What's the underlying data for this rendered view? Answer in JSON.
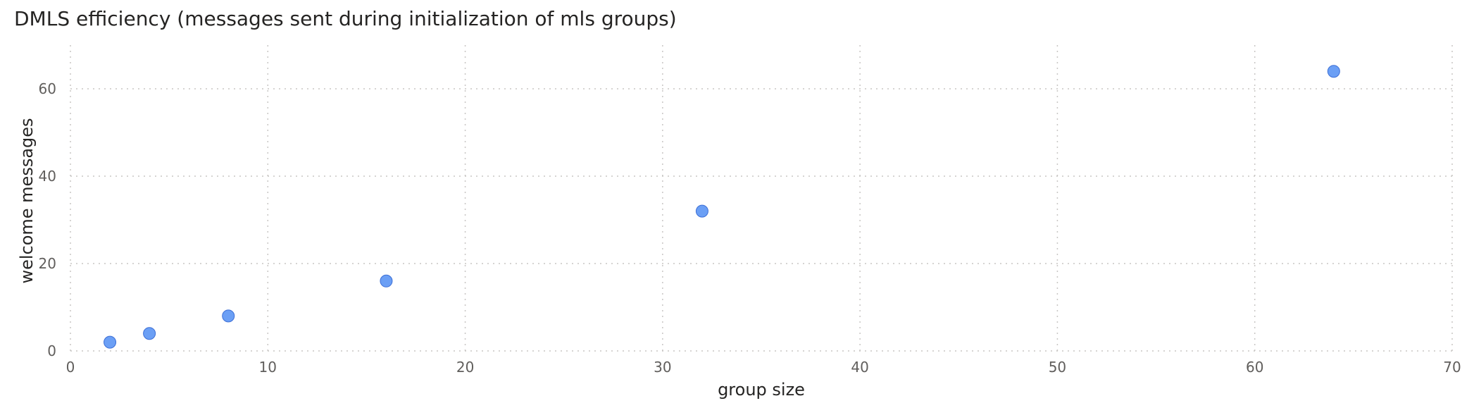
{
  "chart_data": {
    "type": "scatter",
    "title": "DMLS efficiency (messages sent during initialization of mls groups)",
    "xlabel": "group size",
    "ylabel": "welcome messages",
    "xlim": [
      0,
      70
    ],
    "ylim": [
      0,
      70
    ],
    "xticks": [
      0,
      10,
      20,
      30,
      40,
      50,
      60,
      70
    ],
    "yticks": [
      0,
      20,
      40,
      60
    ],
    "grid": true,
    "series": [
      {
        "color": "#6b9ff5",
        "points": [
          {
            "x": 2,
            "y": 2
          },
          {
            "x": 4,
            "y": 4
          },
          {
            "x": 8,
            "y": 8
          },
          {
            "x": 16,
            "y": 16
          },
          {
            "x": 32,
            "y": 32
          },
          {
            "x": 64,
            "y": 64
          }
        ]
      }
    ]
  }
}
